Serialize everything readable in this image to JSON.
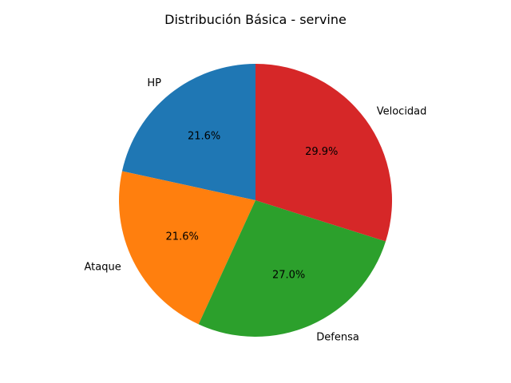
{
  "chart_data": {
    "type": "pie",
    "title": "Distribución Básica - servine",
    "categories": [
      "HP",
      "Ataque",
      "Defensa",
      "Velocidad"
    ],
    "values": [
      21.6,
      21.6,
      27.0,
      29.9
    ],
    "value_labels": [
      "21.6%",
      "21.6%",
      "27.0%",
      "29.9%"
    ],
    "colors": [
      "#1f77b4",
      "#ff7f0e",
      "#2ca02c",
      "#d62728"
    ],
    "start_angle_deg": 90,
    "direction": "counterclockwise",
    "legend": "none"
  }
}
